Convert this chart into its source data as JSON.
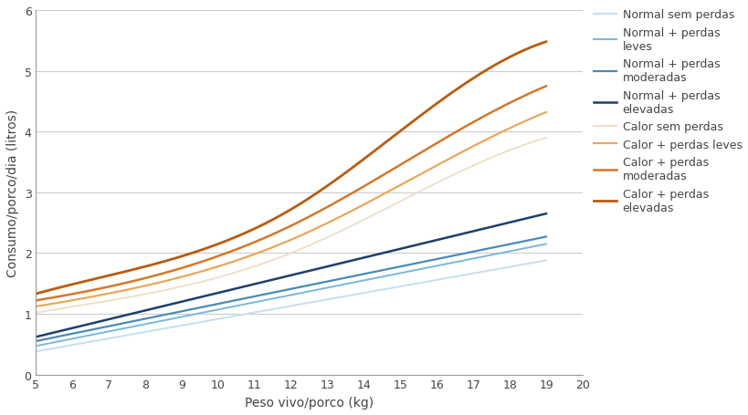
{
  "xlabel": "Peso vivo/porco (kg)",
  "ylabel": "Consumo/porco/dia (litros)",
  "xlim": [
    5,
    20
  ],
  "ylim": [
    0,
    6
  ],
  "xticks": [
    5,
    6,
    7,
    8,
    9,
    10,
    11,
    12,
    13,
    14,
    15,
    16,
    17,
    18,
    19,
    20
  ],
  "yticks": [
    0,
    1,
    2,
    3,
    4,
    5,
    6
  ],
  "series": [
    {
      "label": "Normal sem perdas",
      "color": "#c5dff0",
      "linewidth": 1.4,
      "x": [
        5,
        19
      ],
      "y": [
        0.38,
        1.88
      ]
    },
    {
      "label": "Normal + perdas\nleves",
      "color": "#7ab8d9",
      "linewidth": 1.4,
      "x": [
        5,
        19
      ],
      "y": [
        0.47,
        2.15
      ]
    },
    {
      "label": "Normal + perdas\nmoderadas",
      "color": "#4a8bb5",
      "linewidth": 1.6,
      "x": [
        5,
        19
      ],
      "y": [
        0.55,
        2.27
      ]
    },
    {
      "label": "Normal + perdas\nelevadas",
      "color": "#1c3f6e",
      "linewidth": 1.8,
      "x": [
        5,
        19
      ],
      "y": [
        0.62,
        2.65
      ]
    },
    {
      "label": "Calor sem perdas",
      "color": "#ede0c8",
      "linewidth": 1.4,
      "x": [
        5,
        10,
        12,
        14,
        19
      ],
      "y": [
        1.02,
        1.6,
        2.0,
        2.55,
        3.9
      ]
    },
    {
      "label": "Calor + perdas leves",
      "color": "#e8a85a",
      "linewidth": 1.6,
      "x": [
        5,
        10,
        12,
        14,
        19
      ],
      "y": [
        1.12,
        1.78,
        2.22,
        2.8,
        4.32
      ]
    },
    {
      "label": "Calor + perdas\nmoderadas",
      "color": "#d4782a",
      "linewidth": 1.8,
      "x": [
        5,
        10,
        12,
        14,
        19
      ],
      "y": [
        1.22,
        1.95,
        2.45,
        3.1,
        4.75
      ]
    },
    {
      "label": "Calor + perdas\nelevadas",
      "color": "#b85c10",
      "linewidth": 2.0,
      "x": [
        5,
        10,
        12,
        14,
        19
      ],
      "y": [
        1.33,
        2.15,
        2.72,
        3.55,
        5.48
      ]
    }
  ],
  "background_color": "#ffffff",
  "grid_color": "#cccccc",
  "axis_color": "#999999",
  "font_color": "#444444",
  "font_size_axis_label": 10,
  "font_size_tick": 9,
  "font_size_legend": 9
}
